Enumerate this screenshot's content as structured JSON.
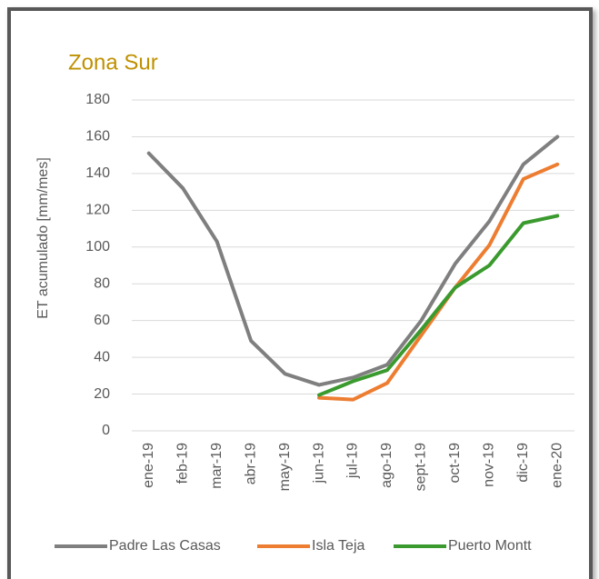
{
  "chart_data": {
    "type": "line",
    "title": "Zona Sur",
    "y_label": "ET acumulado [mm/mes]",
    "categories": [
      "ene-19",
      "feb-19",
      "mar-19",
      "abr-19",
      "may-19",
      "jun-19",
      "jul-19",
      "ago-19",
      "sept-19",
      "oct-19",
      "nov-19",
      "dic-19",
      "ene-20"
    ],
    "series": [
      {
        "name": "Padre Las Casas",
        "color": "#7f7f7f",
        "values": [
          151,
          132,
          103,
          49,
          31,
          25,
          29,
          36,
          60,
          91,
          114,
          145,
          160
        ]
      },
      {
        "name": "Isla Teja",
        "color": "#ed7d31",
        "values": [
          null,
          null,
          null,
          null,
          null,
          18,
          17,
          26,
          52,
          78,
          101,
          137,
          145
        ]
      },
      {
        "name": "Puerto Montt",
        "color": "#3a9a2e",
        "values": [
          null,
          null,
          null,
          null,
          null,
          19.5,
          27,
          33,
          55,
          78,
          90,
          113,
          117
        ]
      }
    ],
    "ylim": [
      0,
      180
    ],
    "yticks": [
      0,
      20,
      40,
      60,
      80,
      100,
      120,
      140,
      160,
      180
    ],
    "grid": true,
    "legend": "bottom"
  }
}
